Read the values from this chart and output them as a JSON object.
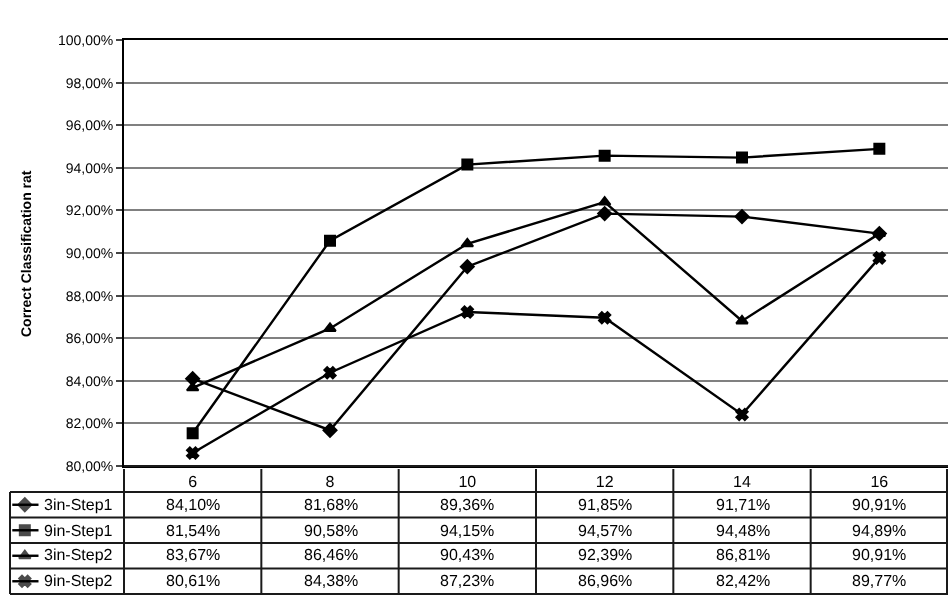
{
  "chart_data": {
    "type": "line",
    "ylabel": "Correct Classification rat",
    "categories": [
      "6",
      "8",
      "10",
      "12",
      "14",
      "16"
    ],
    "series": [
      {
        "name": "3in-Step1",
        "color": "#000000",
        "marker": "diamond",
        "values": [
          84.1,
          81.68,
          89.36,
          91.85,
          91.71,
          90.91
        ],
        "value_labels": [
          "84,10%",
          "81,68%",
          "89,36%",
          "91,85%",
          "91,71%",
          "90,91%"
        ]
      },
      {
        "name": "9in-Step1",
        "color": "#000000",
        "marker": "square",
        "values": [
          81.54,
          90.58,
          94.15,
          94.57,
          94.48,
          94.89
        ],
        "value_labels": [
          "81,54%",
          "90,58%",
          "94,15%",
          "94,57%",
          "94,48%",
          "94,89%"
        ]
      },
      {
        "name": "3in-Step2",
        "color": "#000000",
        "marker": "triangle",
        "values": [
          83.67,
          86.46,
          90.43,
          92.39,
          86.81,
          90.91
        ],
        "value_labels": [
          "83,67%",
          "86,46%",
          "90,43%",
          "92,39%",
          "86,81%",
          "90,91%"
        ]
      },
      {
        "name": "9in-Step2",
        "color": "#000000",
        "marker": "cross",
        "values": [
          80.61,
          84.38,
          87.23,
          86.96,
          82.42,
          89.77
        ],
        "value_labels": [
          "80,61%",
          "84,38%",
          "87,23%",
          "86,96%",
          "82,42%",
          "89,77%"
        ]
      }
    ],
    "ylim": [
      80,
      100
    ],
    "yticks": [
      {
        "value": 80,
        "label": "80,00%"
      },
      {
        "value": 82,
        "label": "82,00%"
      },
      {
        "value": 84,
        "label": "84,00%"
      },
      {
        "value": 86,
        "label": "86,00%"
      },
      {
        "value": 88,
        "label": "88,00%"
      },
      {
        "value": 90,
        "label": "90,00%"
      },
      {
        "value": 92,
        "label": "92,00%"
      },
      {
        "value": 94,
        "label": "94,00%"
      },
      {
        "value": 96,
        "label": "96,00%"
      },
      {
        "value": 98,
        "label": "98,00%"
      },
      {
        "value": 100,
        "label": "100,00%"
      }
    ],
    "grid": "y",
    "legend": "bottom",
    "line_style": "solid"
  }
}
